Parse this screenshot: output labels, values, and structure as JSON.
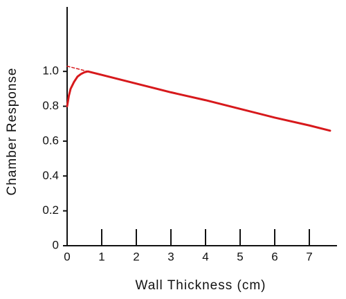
{
  "chart_data": {
    "type": "line",
    "xlabel": "Wall Thickness (cm)",
    "ylabel": "Chamber Response",
    "xlim": [
      0,
      7.8
    ],
    "ylim": [
      0,
      1.37
    ],
    "xticks": [
      0,
      1,
      2,
      3,
      4,
      5,
      6,
      7
    ],
    "yticks": [
      0,
      0.2,
      0.4,
      0.6,
      0.8,
      {
        "value": 1.0,
        "label": "1.0"
      }
    ],
    "series": [
      {
        "color": "#d7191c",
        "style": "solid",
        "x": [
          0,
          0.05,
          0.1,
          0.2,
          0.3,
          0.4,
          0.5,
          0.6,
          1,
          2,
          3,
          4,
          5,
          6,
          7,
          7.6
        ],
        "values": [
          0.8,
          0.86,
          0.9,
          0.94,
          0.97,
          0.985,
          0.995,
          1.0,
          0.98,
          0.93,
          0.88,
          0.835,
          0.785,
          0.735,
          0.69,
          0.66
        ]
      },
      {
        "color": "#d7191c",
        "style": "dashed",
        "x": [
          0,
          0.6
        ],
        "values": [
          1.03,
          1.0
        ]
      }
    ]
  }
}
